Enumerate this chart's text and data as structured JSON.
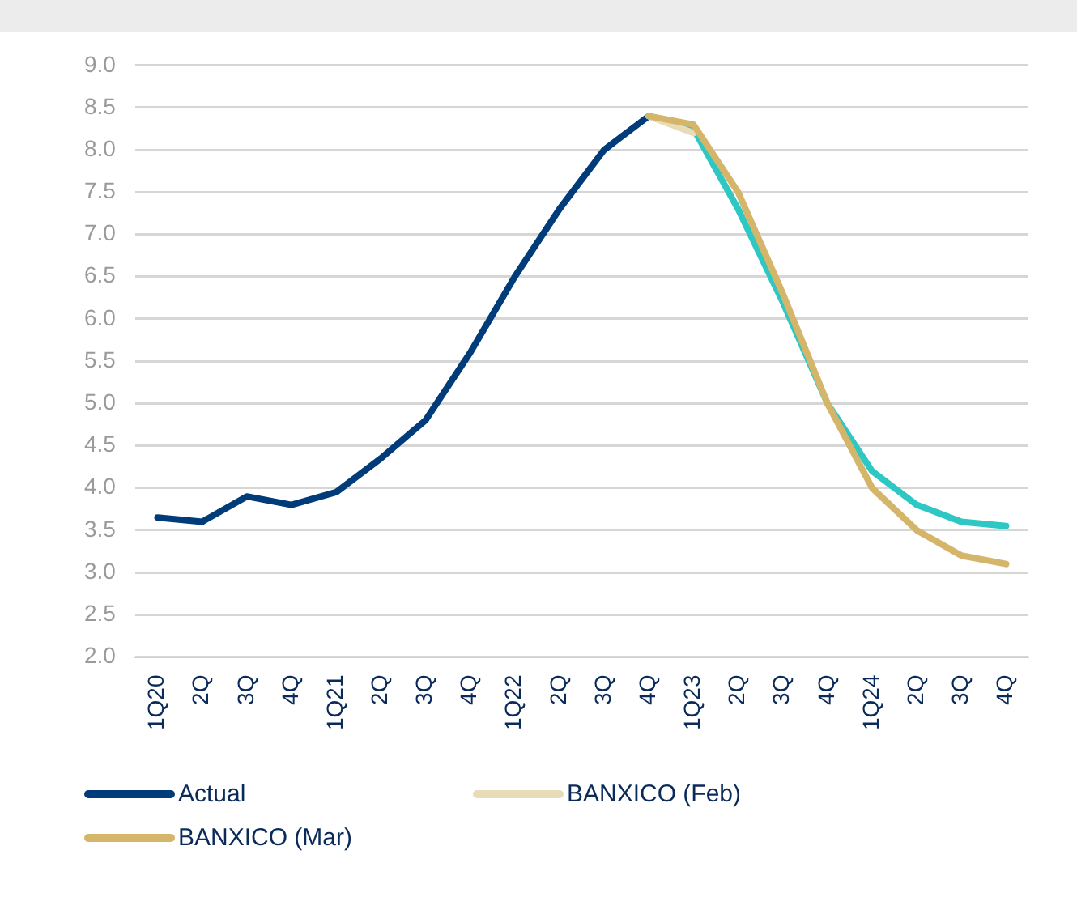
{
  "chart_data": {
    "type": "line",
    "categories": [
      "1Q20",
      "2Q",
      "3Q",
      "4Q",
      "1Q21",
      "2Q",
      "3Q",
      "4Q",
      "1Q22",
      "2Q",
      "3Q",
      "4Q",
      "1Q23",
      "2Q",
      "3Q",
      "4Q",
      "1Q24",
      "2Q",
      "3Q",
      "4Q"
    ],
    "series": [
      {
        "name": "Actual",
        "color": "#003b7a",
        "values": [
          3.65,
          3.6,
          3.9,
          3.8,
          3.95,
          4.35,
          4.8,
          5.6,
          6.5,
          7.3,
          8.0,
          8.4,
          null,
          null,
          null,
          null,
          null,
          null,
          null,
          null
        ]
      },
      {
        "color": "#2ec8c4",
        "values": [
          null,
          null,
          null,
          null,
          null,
          null,
          null,
          null,
          null,
          null,
          null,
          8.4,
          8.25,
          7.3,
          6.2,
          5.0,
          4.2,
          3.8,
          3.6,
          3.55
        ]
      },
      {
        "name": "BANXICO (Feb)",
        "color": "#e8dcb8",
        "values": [
          null,
          null,
          null,
          null,
          null,
          null,
          null,
          null,
          null,
          null,
          null,
          8.4,
          8.2,
          null,
          null,
          null,
          null,
          null,
          null,
          null
        ]
      },
      {
        "name": "BANXICO (Mar)",
        "color": "#d4b56a",
        "values": [
          null,
          null,
          null,
          null,
          null,
          null,
          null,
          null,
          null,
          null,
          null,
          8.4,
          8.3,
          7.5,
          6.3,
          5.0,
          4.0,
          3.5,
          3.2,
          3.1
        ]
      }
    ],
    "ylim": [
      2,
      9
    ],
    "yticks": [
      {
        "value": 2,
        "label": "2.0"
      },
      {
        "value": 2.5,
        "label": "2.5"
      },
      {
        "value": 3,
        "label": "3.0"
      },
      {
        "value": 3.5,
        "label": "3.5"
      },
      {
        "value": 4,
        "label": "4.0"
      },
      {
        "value": 4.5,
        "label": "4.5"
      },
      {
        "value": 5,
        "label": "5.0"
      },
      {
        "value": 5.5,
        "label": "5.5"
      },
      {
        "value": 6,
        "label": "6.0"
      },
      {
        "value": 6.5,
        "label": "6.5"
      },
      {
        "value": 7,
        "label": "7.0"
      },
      {
        "value": 7.5,
        "label": "7.5"
      },
      {
        "value": 8,
        "label": "8.0"
      },
      {
        "value": 8.5,
        "label": "8.5"
      },
      {
        "value": 9,
        "label": "9.0"
      }
    ],
    "grid": "y",
    "legend": "bottom",
    "marker": "none",
    "line_style": "solid"
  }
}
